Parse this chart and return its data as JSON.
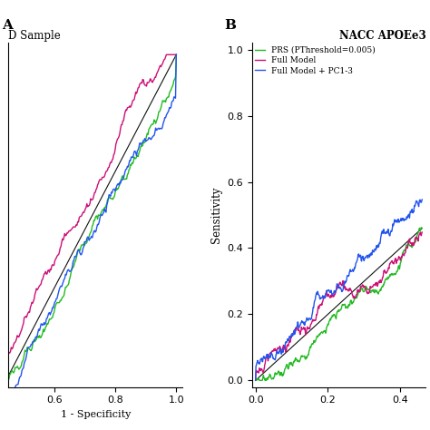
{
  "title_A": "D Sample",
  "title_B": "NACC APOEe3",
  "label_A": "A",
  "label_B": "B",
  "ylabel": "Sensitivity",
  "xlabel_A": "1 - Specificity",
  "xlabel_B": "",
  "legend_labels": [
    "PRS (PThreshold=0.005)",
    "Full Model",
    "Full Model + PC1-3"
  ],
  "colors": {
    "prs": "#22bb22",
    "full": "#cc1177",
    "full_pc": "#2255ee",
    "diag": "#111111"
  },
  "xlim_A": [
    0.45,
    1.02
  ],
  "ylim_A": [
    0.43,
    1.02
  ],
  "xlim_B": [
    -0.01,
    0.47
  ],
  "ylim_B": [
    -0.02,
    1.02
  ],
  "xticks_A": [
    0.6,
    0.8,
    1.0
  ],
  "yticks_A": [],
  "xticks_B": [
    0.0,
    0.2,
    0.4
  ],
  "yticks_B": [
    0.0,
    0.2,
    0.4,
    0.6,
    0.8,
    1.0
  ],
  "background": "#ffffff",
  "linewidth": 1.0
}
